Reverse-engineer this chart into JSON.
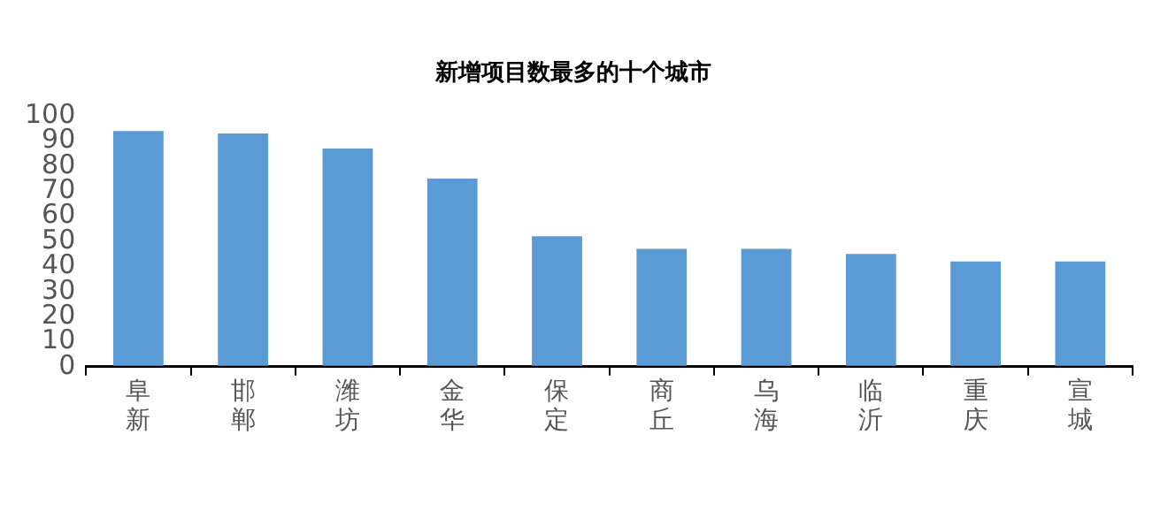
{
  "chart_data": {
    "type": "bar",
    "title": "新增项目数最多的十个城市",
    "categories": [
      "阜新",
      "邯郸",
      "潍坊",
      "金华",
      "保定",
      "商丘",
      "乌海",
      "临沂",
      "重庆",
      "宣城"
    ],
    "values": [
      94,
      93,
      87,
      75,
      52,
      47,
      47,
      45,
      42,
      42
    ],
    "color": "#5b9bd5",
    "ylim": [
      0,
      100
    ],
    "yticks": [
      0,
      10,
      20,
      30,
      40,
      50,
      60,
      70,
      80,
      90,
      100
    ],
    "grid": false
  }
}
